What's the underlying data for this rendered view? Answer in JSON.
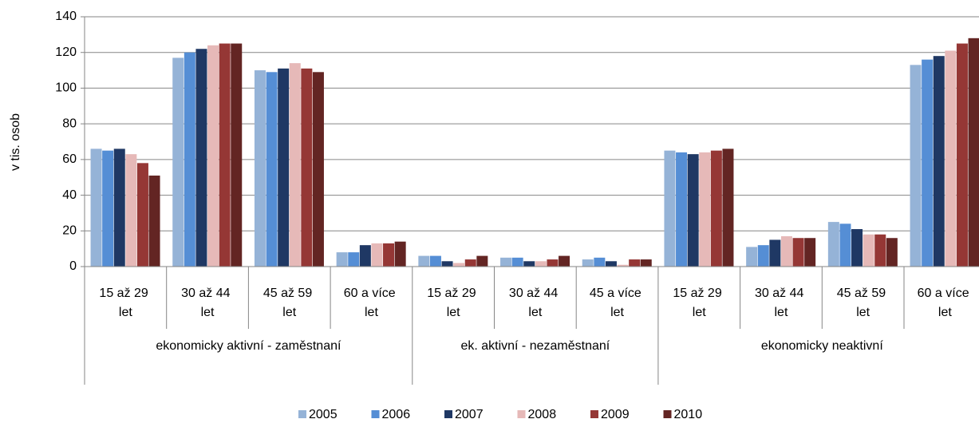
{
  "chart_data": {
    "type": "bar",
    "y_label": "v tis. osob",
    "category_groups": [
      {
        "name": "ekonomicky aktivní - zaměstnaní",
        "categories": [
          "15 až 29 let",
          "30 až 44 let",
          "45 až 59 let",
          "60 a více let"
        ]
      },
      {
        "name": "ek. aktivní - nezaměstnaní",
        "categories": [
          "15 až 29 let",
          "30 až 44 let",
          "45 a více let"
        ]
      },
      {
        "name": "ekonomicky neaktivní",
        "categories": [
          "15 až 29 let",
          "30 až 44 let",
          "45 až 59 let",
          "60 a více let"
        ]
      }
    ],
    "series": [
      {
        "name": "2005",
        "color": "#95b3d7",
        "values": [
          66,
          117,
          110,
          8,
          6,
          5,
          4,
          65,
          11,
          25,
          113
        ]
      },
      {
        "name": "2006",
        "color": "#558ed5",
        "values": [
          65,
          120,
          109,
          8,
          6,
          5,
          5,
          64,
          12,
          24,
          116
        ]
      },
      {
        "name": "2007",
        "color": "#1f3864",
        "values": [
          66,
          122,
          111,
          12,
          3,
          3,
          3,
          63,
          15,
          21,
          118
        ]
      },
      {
        "name": "2008",
        "color": "#e6b9b8",
        "values": [
          63,
          124,
          114,
          13,
          2,
          3,
          1,
          64,
          17,
          18,
          121
        ]
      },
      {
        "name": "2009",
        "color": "#953735",
        "values": [
          58,
          125,
          111,
          13,
          4,
          4,
          4,
          65,
          16,
          18,
          125
        ]
      },
      {
        "name": "2010",
        "color": "#632523",
        "values": [
          51,
          125,
          109,
          14,
          6,
          6,
          4,
          66,
          16,
          16,
          128
        ]
      }
    ],
    "ylim": [
      0,
      140
    ],
    "yticks": [
      0,
      20,
      40,
      60,
      80,
      100,
      120,
      140
    ],
    "grid": true,
    "legend": "bottom"
  }
}
